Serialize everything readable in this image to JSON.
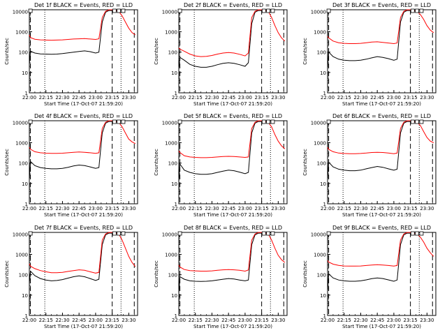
{
  "chart_data": [
    {
      "type": "line",
      "title": "Det 1f BLACK = Events, RED = LLD",
      "xlabel": "Start Time (17-Oct-07 21:59:20)",
      "ylabel": "Counts/sec",
      "xticks": [
        "22:00",
        "22:15",
        "22:30",
        "22:45",
        "23:00",
        "23:15",
        "23:30"
      ],
      "yticks": [
        "1",
        "10",
        "100",
        "1000",
        "10000"
      ],
      "ylog": true,
      "ylim": [
        1,
        12000
      ],
      "x": [
        "22:00",
        "22:01",
        "22:05",
        "22:10",
        "22:15",
        "22:20",
        "22:25",
        "22:30",
        "22:35",
        "22:40",
        "22:45",
        "22:50",
        "22:55",
        "23:00",
        "23:03",
        "23:06",
        "23:09",
        "23:12",
        "23:15",
        "23:18",
        "23:21",
        "23:24",
        "23:27",
        "23:30",
        "23:33",
        "23:36"
      ],
      "series": [
        {
          "name": "Events",
          "color": "#000000",
          "values": [
            25,
            110,
            90,
            82,
            80,
            78,
            80,
            85,
            92,
            100,
            108,
            115,
            105,
            90,
            100,
            3000,
            9000,
            11000,
            11000,
            null,
            null,
            null,
            null,
            null,
            null,
            null
          ]
        },
        {
          "name": "LLD",
          "color": "#ff0000",
          "values": [
            700,
            520,
            430,
            400,
            390,
            385,
            390,
            400,
            420,
            440,
            450,
            460,
            440,
            420,
            450,
            5000,
            10000,
            12000,
            12000,
            11000,
            10000,
            6000,
            3000,
            1500,
            900,
            700
          ]
        }
      ]
    },
    {
      "type": "line",
      "title": "Det 2f BLACK = Events, RED = LLD",
      "xlabel": "Start Time (17-Oct-07 21:59:20)",
      "ylabel": "Counts/sec",
      "xticks": [
        "22:00",
        "22:15",
        "22:30",
        "22:45",
        "23:00",
        "23:15",
        "23:30"
      ],
      "yticks": [
        "1",
        "10",
        "100",
        "1000",
        "10000"
      ],
      "ylog": true,
      "ylim": [
        1,
        12000
      ],
      "x": [
        "22:00",
        "22:01",
        "22:05",
        "22:10",
        "22:15",
        "22:20",
        "22:25",
        "22:30",
        "22:35",
        "22:40",
        "22:45",
        "22:50",
        "22:55",
        "23:00",
        "23:03",
        "23:06",
        "23:09",
        "23:12",
        "23:15",
        "23:18",
        "23:21",
        "23:24",
        "23:27",
        "23:30",
        "23:33",
        "23:36"
      ],
      "series": [
        {
          "name": "Events",
          "color": "#000000",
          "values": [
            15,
            55,
            40,
            25,
            20,
            18,
            18,
            20,
            24,
            28,
            30,
            28,
            24,
            20,
            30,
            2500,
            9000,
            11000,
            11000,
            null,
            null,
            null,
            null,
            null,
            null,
            null
          ]
        },
        {
          "name": "LLD",
          "color": "#ff0000",
          "values": [
            160,
            140,
            110,
            80,
            65,
            60,
            62,
            68,
            80,
            90,
            95,
            90,
            78,
            65,
            90,
            5000,
            10000,
            12000,
            12000,
            11000,
            10000,
            5000,
            2000,
            900,
            500,
            350
          ]
        }
      ]
    },
    {
      "type": "line",
      "title": "Det 3f BLACK = Events, RED = LLD",
      "xlabel": "Start Time (17-Oct-07 21:59:20)",
      "ylabel": "Counts/sec",
      "xticks": [
        "22:00",
        "22:15",
        "22:30",
        "22:45",
        "23:00",
        "23:15",
        "23:30"
      ],
      "yticks": [
        "1",
        "10",
        "100",
        "1000",
        "10000"
      ],
      "ylog": true,
      "ylim": [
        1,
        12000
      ],
      "x": [
        "22:00",
        "22:01",
        "22:05",
        "22:10",
        "22:15",
        "22:20",
        "22:25",
        "22:30",
        "22:35",
        "22:40",
        "22:45",
        "22:50",
        "22:55",
        "23:00",
        "23:03",
        "23:06",
        "23:09",
        "23:12",
        "23:15",
        "23:18",
        "23:21",
        "23:24",
        "23:27",
        "23:30",
        "23:33",
        "23:36"
      ],
      "series": [
        {
          "name": "Events",
          "color": "#000000",
          "values": [
            15,
            100,
            60,
            45,
            40,
            38,
            38,
            40,
            45,
            52,
            60,
            55,
            48,
            40,
            45,
            3000,
            9000,
            11000,
            11000,
            null,
            null,
            null,
            null,
            null,
            null,
            null
          ]
        },
        {
          "name": "LLD",
          "color": "#ff0000",
          "values": [
            600,
            500,
            350,
            290,
            270,
            260,
            260,
            270,
            290,
            310,
            320,
            300,
            280,
            260,
            280,
            5000,
            10000,
            12000,
            12000,
            11000,
            10000,
            7000,
            4000,
            2000,
            1200,
            900
          ]
        }
      ]
    },
    {
      "type": "line",
      "title": "Det 4f BLACK = Events, RED = LLD",
      "xlabel": "Start Time (17-Oct-07 21:59:20)",
      "ylabel": "Counts/sec",
      "xticks": [
        "22:00",
        "22:15",
        "22:30",
        "22:45",
        "23:00",
        "23:15",
        "23:30"
      ],
      "yticks": [
        "1",
        "10",
        "100",
        "1000",
        "10000"
      ],
      "ylog": true,
      "ylim": [
        1,
        12000
      ],
      "x": [
        "22:00",
        "22:01",
        "22:05",
        "22:10",
        "22:15",
        "22:20",
        "22:25",
        "22:30",
        "22:35",
        "22:40",
        "22:45",
        "22:50",
        "22:55",
        "23:00",
        "23:03",
        "23:06",
        "23:09",
        "23:12",
        "23:15",
        "23:18",
        "23:21",
        "23:24",
        "23:27",
        "23:30",
        "23:33",
        "23:36"
      ],
      "series": [
        {
          "name": "Events",
          "color": "#000000",
          "values": [
            15,
            120,
            75,
            60,
            55,
            52,
            52,
            55,
            62,
            72,
            80,
            75,
            65,
            55,
            60,
            3000,
            9000,
            11000,
            11000,
            null,
            null,
            null,
            null,
            null,
            null,
            null
          ]
        },
        {
          "name": "LLD",
          "color": "#ff0000",
          "values": [
            600,
            480,
            360,
            320,
            305,
            300,
            300,
            305,
            320,
            340,
            350,
            340,
            320,
            300,
            320,
            5000,
            10000,
            12000,
            12000,
            11000,
            10000,
            6000,
            3000,
            1500,
            1100,
            900
          ]
        }
      ]
    },
    {
      "type": "line",
      "title": "Det 5f BLACK = Events, RED = LLD",
      "xlabel": "Start Time (17-Oct-07 21:59:20)",
      "ylabel": "Counts/sec",
      "xticks": [
        "22:00",
        "22:15",
        "22:30",
        "22:45",
        "23:00",
        "23:15",
        "23:30"
      ],
      "yticks": [
        "1",
        "10",
        "100",
        "1000",
        "10000"
      ],
      "ylog": true,
      "ylim": [
        1,
        12000
      ],
      "x": [
        "22:00",
        "22:01",
        "22:05",
        "22:10",
        "22:15",
        "22:20",
        "22:25",
        "22:30",
        "22:35",
        "22:40",
        "22:45",
        "22:50",
        "22:55",
        "23:00",
        "23:03",
        "23:06",
        "23:09",
        "23:12",
        "23:15",
        "23:18",
        "23:21",
        "23:24",
        "23:27",
        "23:30",
        "23:33",
        "23:36"
      ],
      "series": [
        {
          "name": "Events",
          "color": "#000000",
          "values": [
            12,
            90,
            45,
            35,
            30,
            28,
            28,
            30,
            35,
            40,
            45,
            42,
            36,
            30,
            35,
            3000,
            9000,
            11000,
            11000,
            null,
            null,
            null,
            null,
            null,
            null,
            null
          ]
        },
        {
          "name": "LLD",
          "color": "#ff0000",
          "values": [
            400,
            330,
            230,
            200,
            190,
            185,
            185,
            190,
            200,
            210,
            215,
            210,
            200,
            190,
            200,
            5000,
            10000,
            12000,
            12000,
            11000,
            10000,
            6000,
            2500,
            1200,
            700,
            500
          ]
        }
      ]
    },
    {
      "type": "line",
      "title": "Det 6f BLACK = Events, RED = LLD",
      "xlabel": "Start Time (17-Oct-07 21:59:20)",
      "ylabel": "Counts/sec",
      "xticks": [
        "22:00",
        "22:15",
        "22:30",
        "22:45",
        "23:00",
        "23:15",
        "23:30"
      ],
      "yticks": [
        "1",
        "10",
        "100",
        "1000",
        "10000"
      ],
      "ylog": true,
      "ylim": [
        1,
        12000
      ],
      "x": [
        "22:00",
        "22:01",
        "22:05",
        "22:10",
        "22:15",
        "22:20",
        "22:25",
        "22:30",
        "22:35",
        "22:40",
        "22:45",
        "22:50",
        "22:55",
        "23:00",
        "23:03",
        "23:06",
        "23:09",
        "23:12",
        "23:15",
        "23:18",
        "23:21",
        "23:24",
        "23:27",
        "23:30",
        "23:33",
        "23:36"
      ],
      "series": [
        {
          "name": "Events",
          "color": "#000000",
          "values": [
            15,
            110,
            65,
            50,
            45,
            42,
            42,
            45,
            52,
            60,
            68,
            62,
            52,
            45,
            50,
            3000,
            9000,
            11000,
            11000,
            null,
            null,
            null,
            null,
            null,
            null,
            null
          ]
        },
        {
          "name": "LLD",
          "color": "#ff0000",
          "values": [
            600,
            470,
            360,
            310,
            295,
            290,
            290,
            295,
            310,
            330,
            340,
            330,
            310,
            290,
            310,
            5000,
            10000,
            12000,
            12000,
            11000,
            10000,
            7000,
            3500,
            1800,
            1200,
            1000
          ]
        }
      ]
    },
    {
      "type": "line",
      "title": "Det 7f BLACK = Events, RED = LLD",
      "xlabel": "Start Time (17-Oct-07 21:59:20)",
      "ylabel": "Counts/sec",
      "xticks": [
        "22:00",
        "22:15",
        "22:30",
        "22:45",
        "23:00",
        "23:15",
        "23:30"
      ],
      "yticks": [
        "1",
        "10",
        "100",
        "1000",
        "10000"
      ],
      "ylog": true,
      "ylim": [
        1,
        12000
      ],
      "x": [
        "22:00",
        "22:01",
        "22:05",
        "22:10",
        "22:15",
        "22:20",
        "22:25",
        "22:30",
        "22:35",
        "22:40",
        "22:45",
        "22:50",
        "22:55",
        "23:00",
        "23:03",
        "23:06",
        "23:09",
        "23:12",
        "23:15",
        "23:18",
        "23:21",
        "23:24",
        "23:27",
        "23:30",
        "23:33",
        "23:36"
      ],
      "series": [
        {
          "name": "Events",
          "color": "#000000",
          "values": [
            40,
            150,
            90,
            65,
            55,
            50,
            52,
            58,
            68,
            80,
            88,
            80,
            65,
            52,
            60,
            3000,
            9000,
            11000,
            11000,
            null,
            null,
            null,
            null,
            null,
            null,
            null
          ]
        },
        {
          "name": "LLD",
          "color": "#ff0000",
          "values": [
            350,
            260,
            200,
            160,
            140,
            125,
            125,
            130,
            145,
            160,
            175,
            165,
            140,
            120,
            130,
            5000,
            10000,
            12000,
            12000,
            11000,
            10000,
            5000,
            2000,
            800,
            400,
            250
          ]
        }
      ]
    },
    {
      "type": "line",
      "title": "Det 8f BLACK = Events, RED = LLD",
      "xlabel": "Start Time (17-Oct-07 21:59:20)",
      "ylabel": "Counts/sec",
      "xticks": [
        "22:00",
        "22:15",
        "22:30",
        "22:45",
        "23:00",
        "23:15",
        "23:30"
      ],
      "yticks": [
        "1",
        "10",
        "100",
        "1000",
        "10000"
      ],
      "ylog": true,
      "ylim": [
        1,
        12000
      ],
      "x": [
        "22:00",
        "22:01",
        "22:05",
        "22:10",
        "22:15",
        "22:20",
        "22:25",
        "22:30",
        "22:35",
        "22:40",
        "22:45",
        "22:50",
        "22:55",
        "23:00",
        "23:03",
        "23:06",
        "23:09",
        "23:12",
        "23:15",
        "23:18",
        "23:21",
        "23:24",
        "23:27",
        "23:30",
        "23:33",
        "23:36"
      ],
      "series": [
        {
          "name": "Events",
          "color": "#000000",
          "values": [
            12,
            80,
            60,
            50,
            48,
            47,
            48,
            50,
            55,
            60,
            65,
            62,
            55,
            50,
            55,
            3000,
            9000,
            11000,
            11000,
            null,
            null,
            null,
            null,
            null,
            null,
            null
          ]
        },
        {
          "name": "LLD",
          "color": "#ff0000",
          "values": [
            300,
            240,
            180,
            160,
            155,
            150,
            150,
            155,
            165,
            175,
            180,
            175,
            165,
            150,
            170,
            5000,
            10000,
            12000,
            12000,
            11000,
            10000,
            5000,
            2000,
            900,
            550,
            400
          ]
        }
      ]
    },
    {
      "type": "line",
      "title": "Det 9f BLACK = Events, RED = LLD",
      "xlabel": "Start Time (17-Oct-07 21:59:20)",
      "ylabel": "Counts/sec",
      "xticks": [
        "22:00",
        "22:15",
        "22:30",
        "22:45",
        "23:00",
        "23:15",
        "23:30"
      ],
      "yticks": [
        "1",
        "10",
        "100",
        "1000",
        "10000"
      ],
      "ylog": true,
      "ylim": [
        1,
        12000
      ],
      "x": [
        "22:00",
        "22:01",
        "22:05",
        "22:10",
        "22:15",
        "22:20",
        "22:25",
        "22:30",
        "22:35",
        "22:40",
        "22:45",
        "22:50",
        "22:55",
        "23:00",
        "23:03",
        "23:06",
        "23:09",
        "23:12",
        "23:15",
        "23:18",
        "23:21",
        "23:24",
        "23:27",
        "23:30",
        "23:33",
        "23:36"
      ],
      "series": [
        {
          "name": "Events",
          "color": "#000000",
          "values": [
            15,
            110,
            70,
            55,
            50,
            48,
            48,
            50,
            56,
            64,
            70,
            65,
            56,
            48,
            55,
            3000,
            9000,
            11000,
            11000,
            null,
            null,
            null,
            null,
            null,
            null,
            null
          ]
        },
        {
          "name": "LLD",
          "color": "#ff0000",
          "values": [
            500,
            420,
            330,
            290,
            270,
            265,
            265,
            270,
            285,
            300,
            310,
            300,
            285,
            265,
            285,
            5000,
            10000,
            12000,
            12000,
            11000,
            10000,
            7000,
            4000,
            2000,
            1200,
            800
          ]
        }
      ]
    }
  ]
}
